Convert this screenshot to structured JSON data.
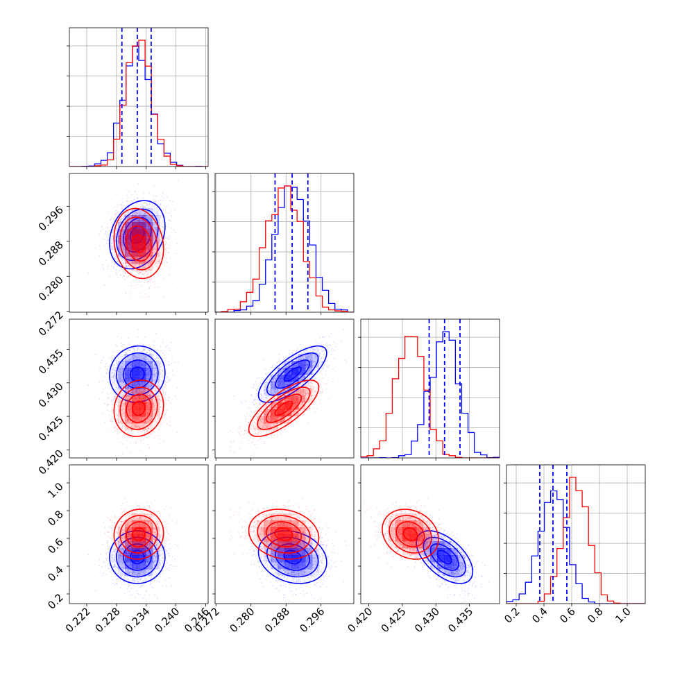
{
  "chart_data": {
    "type": "corner",
    "colors": {
      "blue": "#0000ff",
      "red": "#ff0000",
      "grid": "#b0b0b0"
    },
    "grid": true,
    "quantile_lines": "dashed-blue",
    "parameters": [
      {
        "range": [
          0.2185,
          0.2465
        ],
        "ticks": [
          0.222,
          0.228,
          0.234,
          0.24,
          0.246
        ],
        "tick_labels": [
          "0.222",
          "0.228",
          "0.234",
          "0.240",
          "0.246"
        ]
      },
      {
        "range": [
          0.2718,
          0.3035
        ],
        "ticks": [
          0.272,
          0.28,
          0.288,
          0.296
        ],
        "tick_labels": [
          "0.272",
          "0.280",
          "0.288",
          "0.296"
        ]
      },
      {
        "range": [
          0.4188,
          0.4395
        ],
        "ticks": [
          0.42,
          0.425,
          0.43,
          0.435
        ],
        "tick_labels": [
          "0.420",
          "0.425",
          "0.430",
          "0.435"
        ]
      },
      {
        "range": [
          0.13,
          1.13
        ],
        "ticks": [
          0.2,
          0.4,
          0.6,
          0.8,
          1.0
        ],
        "tick_labels": [
          "0.2",
          "0.4",
          "0.6",
          "0.8",
          "1.0"
        ]
      }
    ],
    "series": [
      {
        "color": "blue",
        "mean": [
          0.2322,
          0.2895,
          0.4313,
          0.465
        ],
        "std": [
          0.0028,
          0.0039,
          0.0021,
          0.095
        ],
        "corr": [
          [
            1,
            0.25,
            0.05,
            0.0
          ],
          [
            0.25,
            1,
            0.75,
            -0.2
          ],
          [
            0.05,
            0.75,
            1,
            -0.55
          ],
          [
            0.0,
            -0.2,
            -0.55,
            1
          ]
        ],
        "quantiles": [
          [
            0.2291,
            0.2322,
            0.235
          ],
          [
            0.2855,
            0.2894,
            0.293
          ],
          [
            0.429,
            0.4313,
            0.4336
          ],
          [
            0.37,
            0.465,
            0.565
          ]
        ]
      },
      {
        "color": "red",
        "mean": [
          0.2325,
          0.2875,
          0.4262,
          0.63
        ],
        "std": [
          0.0025,
          0.004,
          0.0021,
          0.09
        ],
        "corr": [
          [
            1,
            -0.15,
            0.1,
            0.05
          ],
          [
            -0.15,
            1,
            0.75,
            -0.15
          ],
          [
            0.1,
            0.75,
            1,
            -0.2
          ],
          [
            0.05,
            -0.15,
            -0.2,
            1
          ]
        ]
      }
    ]
  }
}
